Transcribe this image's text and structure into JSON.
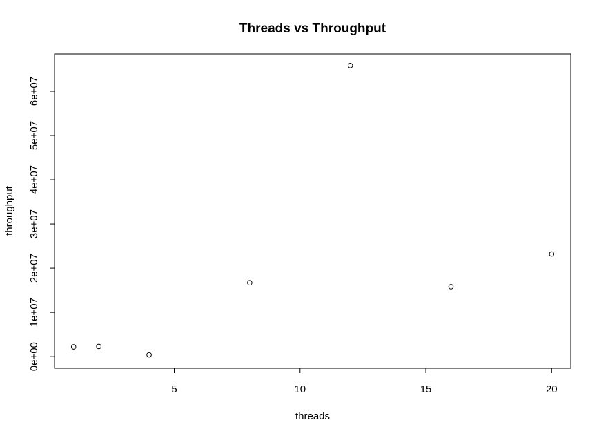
{
  "chart_data": {
    "type": "scatter",
    "title": "Threads vs Throughput",
    "xlabel": "threads",
    "ylabel": "throughput",
    "x": [
      1,
      2,
      4,
      8,
      12,
      16,
      20
    ],
    "y": [
      2200000,
      2300000,
      400000,
      16700000,
      65800000,
      15800000,
      23200000
    ],
    "xlim": [
      1,
      20
    ],
    "ylim": [
      0,
      65800000
    ],
    "xticks": [
      5,
      10,
      15,
      20
    ],
    "xtick_labels": [
      "5",
      "10",
      "15",
      "20"
    ],
    "yticks": [
      0,
      10000000,
      20000000,
      30000000,
      40000000,
      50000000,
      60000000
    ],
    "ytick_labels": [
      "0e+00",
      "1e+07",
      "2e+07",
      "3e+07",
      "4e+07",
      "5e+07",
      "6e+07"
    ],
    "grid": false,
    "marker": "open-circle"
  }
}
